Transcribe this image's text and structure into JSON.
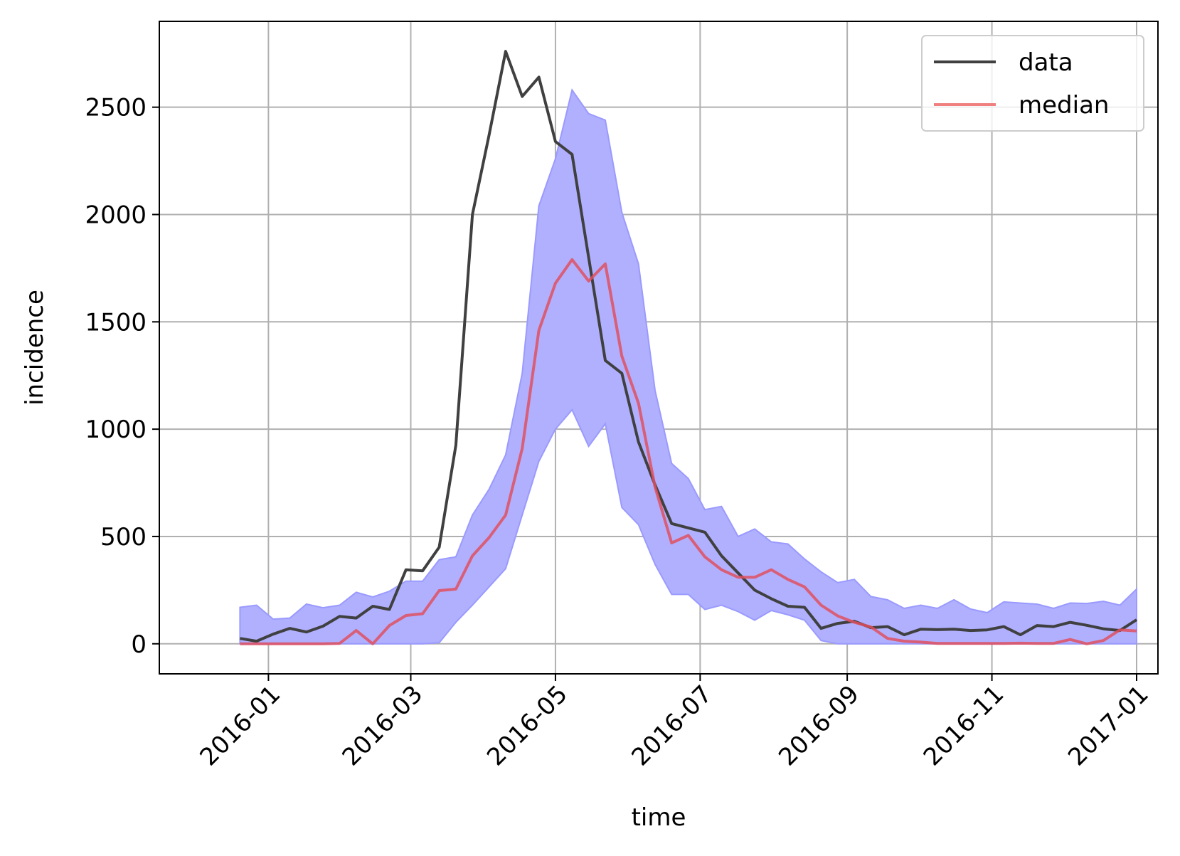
{
  "chart_data": {
    "type": "line",
    "xlabel": "time",
    "ylabel": "incidence",
    "x_tick_labels": [
      "2016-01",
      "2016-03",
      "2016-05",
      "2016-07",
      "2016-09",
      "2016-11",
      "2017-01"
    ],
    "y_tick_labels": [
      "0",
      "500",
      "1000",
      "1500",
      "2000",
      "2500"
    ],
    "xlim": [
      "2015-11-16",
      "2017-01-10"
    ],
    "ylim": [
      -140,
      2900
    ],
    "grid": true,
    "legend_position": "top-right",
    "x": [
      "2015-12-20",
      "2015-12-27",
      "2016-01-03",
      "2016-01-10",
      "2016-01-17",
      "2016-01-24",
      "2016-01-31",
      "2016-02-07",
      "2016-02-14",
      "2016-02-21",
      "2016-02-28",
      "2016-03-06",
      "2016-03-13",
      "2016-03-20",
      "2016-03-27",
      "2016-04-03",
      "2016-04-10",
      "2016-04-17",
      "2016-04-24",
      "2016-05-01",
      "2016-05-08",
      "2016-05-15",
      "2016-05-22",
      "2016-05-29",
      "2016-06-05",
      "2016-06-12",
      "2016-06-19",
      "2016-06-26",
      "2016-07-03",
      "2016-07-10",
      "2016-07-17",
      "2016-07-24",
      "2016-07-31",
      "2016-08-07",
      "2016-08-14",
      "2016-08-21",
      "2016-08-28",
      "2016-09-04",
      "2016-09-11",
      "2016-09-18",
      "2016-09-25",
      "2016-10-02",
      "2016-10-09",
      "2016-10-16",
      "2016-10-23",
      "2016-10-30",
      "2016-11-06",
      "2016-11-13",
      "2016-11-20",
      "2016-11-27",
      "2016-12-04",
      "2016-12-11",
      "2016-12-18",
      "2016-12-25",
      "2017-01-01"
    ],
    "series": [
      {
        "name": "data",
        "color": "#404040",
        "values": [
          25,
          12,
          45,
          72,
          55,
          82,
          128,
          120,
          175,
          160,
          345,
          340,
          450,
          925,
          2000,
          2370,
          2760,
          2550,
          2640,
          2340,
          2280,
          1800,
          1320,
          1260,
          940,
          740,
          560,
          540,
          520,
          410,
          330,
          250,
          210,
          175,
          170,
          72,
          95,
          105,
          75,
          80,
          42,
          68,
          66,
          68,
          62,
          65,
          80,
          42,
          85,
          80,
          100,
          86,
          70,
          62,
          112
        ]
      },
      {
        "name": "median",
        "color": "#f08080",
        "values": [
          0,
          0,
          0,
          0,
          0,
          0,
          2,
          62,
          0,
          85,
          132,
          140,
          248,
          255,
          410,
          495,
          600,
          910,
          1460,
          1680,
          1790,
          1690,
          1770,
          1340,
          1120,
          730,
          470,
          505,
          405,
          345,
          310,
          310,
          345,
          300,
          265,
          180,
          130,
          100,
          78,
          25,
          12,
          8,
          2,
          2,
          2,
          2,
          2,
          3,
          2,
          2,
          20,
          0,
          15,
          65,
          60
        ]
      }
    ],
    "band": {
      "color": "#b0b0ff",
      "edge_color": "#9a9aff",
      "upper": [
        170,
        180,
        115,
        120,
        185,
        168,
        180,
        240,
        218,
        245,
        292,
        292,
        392,
        405,
        600,
        720,
        880,
        1260,
        2040,
        2260,
        2580,
        2470,
        2440,
        2010,
        1770,
        1180,
        840,
        770,
        625,
        640,
        500,
        535,
        475,
        465,
        395,
        335,
        285,
        300,
        220,
        205,
        165,
        180,
        165,
        205,
        162,
        145,
        195,
        190,
        185,
        165,
        190,
        188,
        198,
        180,
        255
      ],
      "lower": [
        0,
        0,
        0,
        0,
        0,
        0,
        0,
        0,
        0,
        0,
        0,
        0,
        5,
        100,
        180,
        265,
        350,
        600,
        850,
        1000,
        1090,
        920,
        1025,
        635,
        555,
        370,
        230,
        230,
        160,
        180,
        150,
        110,
        155,
        135,
        110,
        15,
        0,
        0,
        0,
        0,
        0,
        0,
        0,
        0,
        0,
        0,
        0,
        0,
        0,
        0,
        0,
        0,
        0,
        0,
        0
      ]
    }
  }
}
